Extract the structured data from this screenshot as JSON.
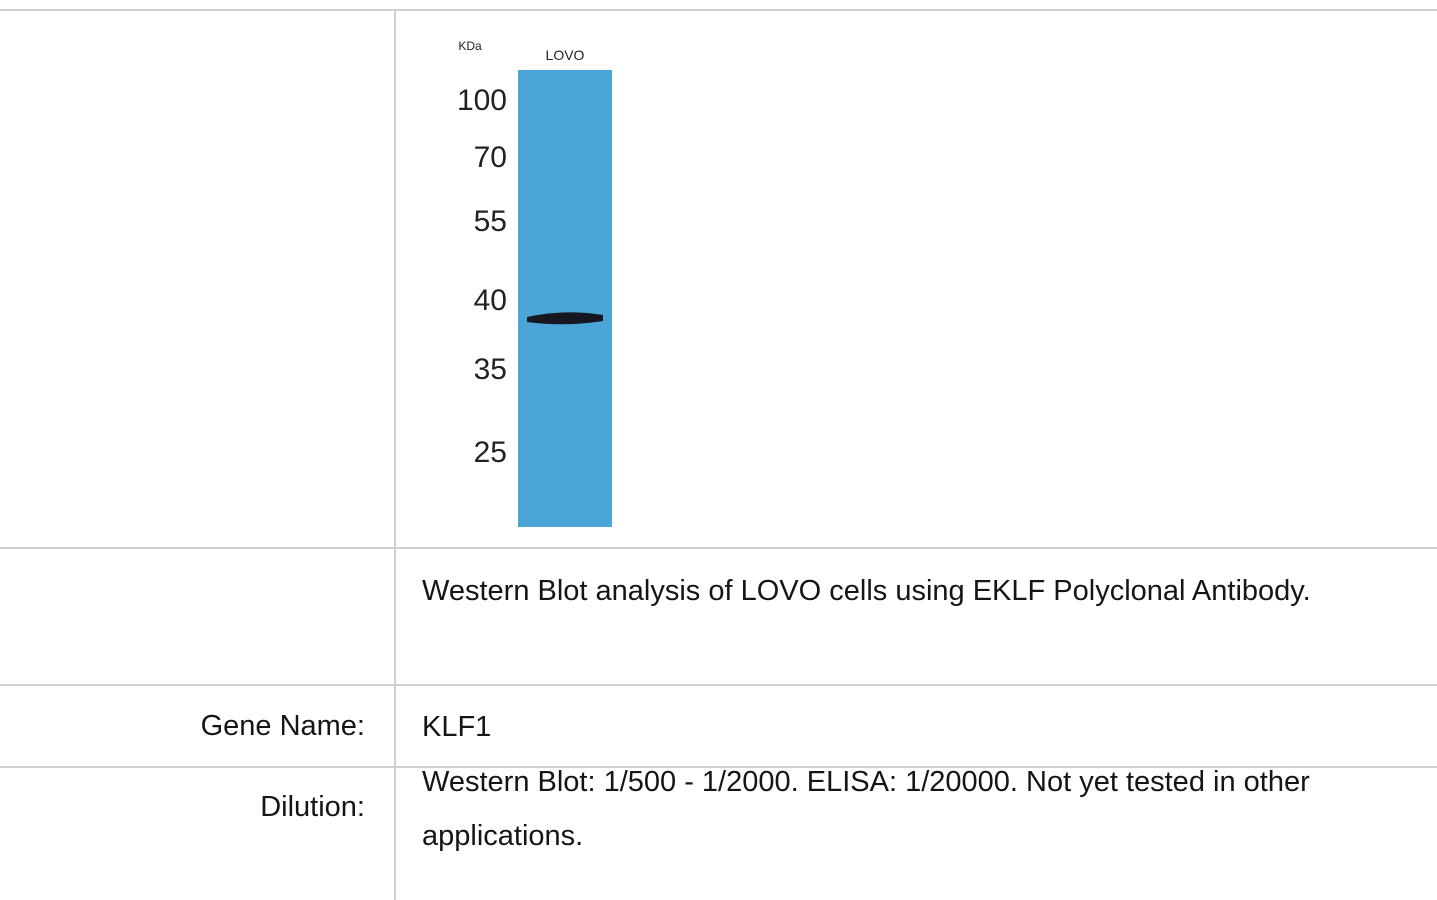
{
  "blot": {
    "unit_label": "KDa",
    "lane_label": "LOVO",
    "markers": [
      "100",
      "70",
      "55",
      "40",
      "35",
      "25"
    ]
  },
  "table": {
    "rows": [
      [
        "",
        ""
      ],
      [
        "",
        "Western Blot analysis of LOVO cells using EKLF Polyclonal Antibody."
      ],
      [
        "Gene Name:",
        "KLF1"
      ],
      [
        "Dilution:",
        "Western Blot: 1/500 - 1/2000. ELISA: 1/20000. Not yet tested in other applications."
      ]
    ]
  }
}
